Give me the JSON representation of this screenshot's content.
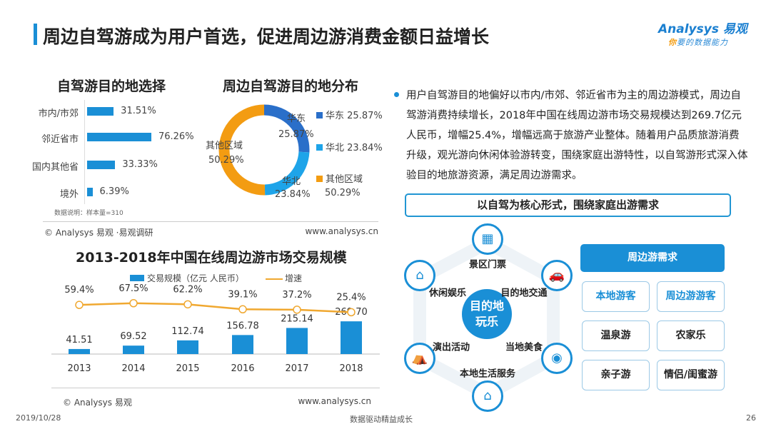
{
  "header": {
    "title": "周边自驾游成为用户首选，促进周边游消费金额日益增长",
    "logo_text": "Analysys 易观",
    "logo_slogan": "你要的数据能力"
  },
  "chart_data": [
    {
      "type": "bar",
      "orientation": "horizontal",
      "title": "自驾游目的地选择",
      "categories": [
        "市内/市郊",
        "邻近省市",
        "国内其他省",
        "境外"
      ],
      "values": [
        31.51,
        76.26,
        33.33,
        6.39
      ],
      "value_labels": [
        "31.51%",
        "76.26%",
        "33.33%",
        "6.39%"
      ],
      "note": "数据说明：样本量=310",
      "source_left": "© Analysys 易观 ·易观调研",
      "source_right": "www.analysys.cn"
    },
    {
      "type": "pie",
      "title": "周边自驾游目的地分布",
      "slices": [
        {
          "name": "华东",
          "value": 25.87,
          "label": "25.87%",
          "color": "#2a6fc9"
        },
        {
          "name": "华北",
          "value": 23.84,
          "label": "23.84%",
          "color": "#1ea4e9"
        },
        {
          "name": "其他区域",
          "value": 50.29,
          "label": "50.29%",
          "color": "#f39c12"
        }
      ],
      "legend": "right"
    },
    {
      "type": "bar",
      "title": "2013-2018年中国在线周边游市场交易规模",
      "categories": [
        "2013",
        "2014",
        "2015",
        "2016",
        "2017",
        "2018"
      ],
      "series": [
        {
          "name": "交易规模（亿元 人民币）",
          "type": "bar",
          "values": [
            41.51,
            69.52,
            112.74,
            156.78,
            215.14,
            269.7
          ],
          "labels": [
            "41.51",
            "69.52",
            "112.74",
            "156.78",
            "215.14",
            "269.70"
          ],
          "color": "#1a8fd6"
        },
        {
          "name": "增速",
          "type": "line",
          "values": [
            59.4,
            67.5,
            62.2,
            39.1,
            37.2,
            25.4
          ],
          "labels": [
            "59.4%",
            "67.5%",
            "62.2%",
            "39.1%",
            "37.2%",
            "25.4%"
          ],
          "color": "#f0a830"
        }
      ],
      "legend": "top",
      "source_left": "© Analysys 易观",
      "source_right": "www.analysys.cn"
    }
  ],
  "right": {
    "paragraph": "用户自驾游目的地偏好以市内/市郊、邻近省市为主的周边游模式，周边自驾游消费持续增长，2018年中国在线周边游市场交易规模达到269.7亿元人民币，增幅25.4%，增幅远高于旅游产业整体。随着用户品质旅游消费升级，观光游向休闲体验游转变，围绕家庭出游特性，以自驾游形式深入体验目的地旅游资源，满足周边游需求。",
    "core_box": "以自驾为核心形式，围绕家庭出游需求",
    "hub": [
      "目的地",
      "玩乐"
    ],
    "nodes": [
      "景区门票",
      "目的地交通",
      "当地美食",
      "本地生活服务",
      "演出活动",
      "休闲娱乐"
    ],
    "needs_header": "周边游需求",
    "needs": [
      "本地游客",
      "周边游游客",
      "温泉游",
      "农家乐",
      "亲子游",
      "情侣/闺蜜游"
    ]
  },
  "footer": {
    "date": "2019/10/28",
    "slogan": "数据驱动精益成长",
    "page": "26"
  }
}
